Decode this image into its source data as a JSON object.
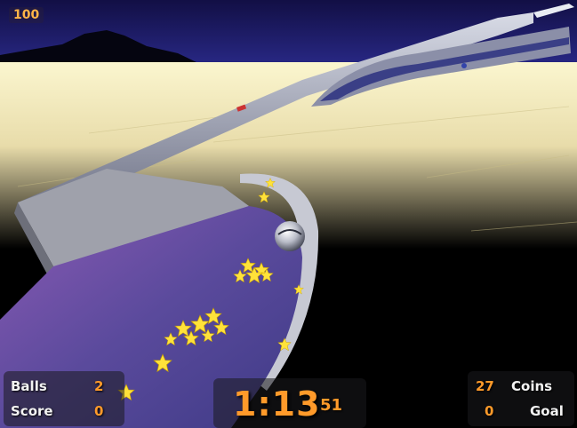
{
  "hud": {
    "fps": "100",
    "balls_label": "Balls",
    "balls_value": "2",
    "score_label": "Score",
    "score_value": "0",
    "timer_main": "1:13",
    "timer_sub": "51",
    "coins_value": "27",
    "coins_label": "Coins",
    "goal_value": "0",
    "goal_label": "Goal"
  },
  "colors": {
    "hud_accent": "#ff9a2a",
    "hud_label": "#f2f2f2",
    "sky_top": "#1a1460",
    "horizon_glow": "#f4eec0",
    "floor_purple": "#6a4aa0",
    "coin_yellow": "#ffe23a"
  },
  "icons": [
    "ball-icon",
    "coin-star-icon"
  ]
}
